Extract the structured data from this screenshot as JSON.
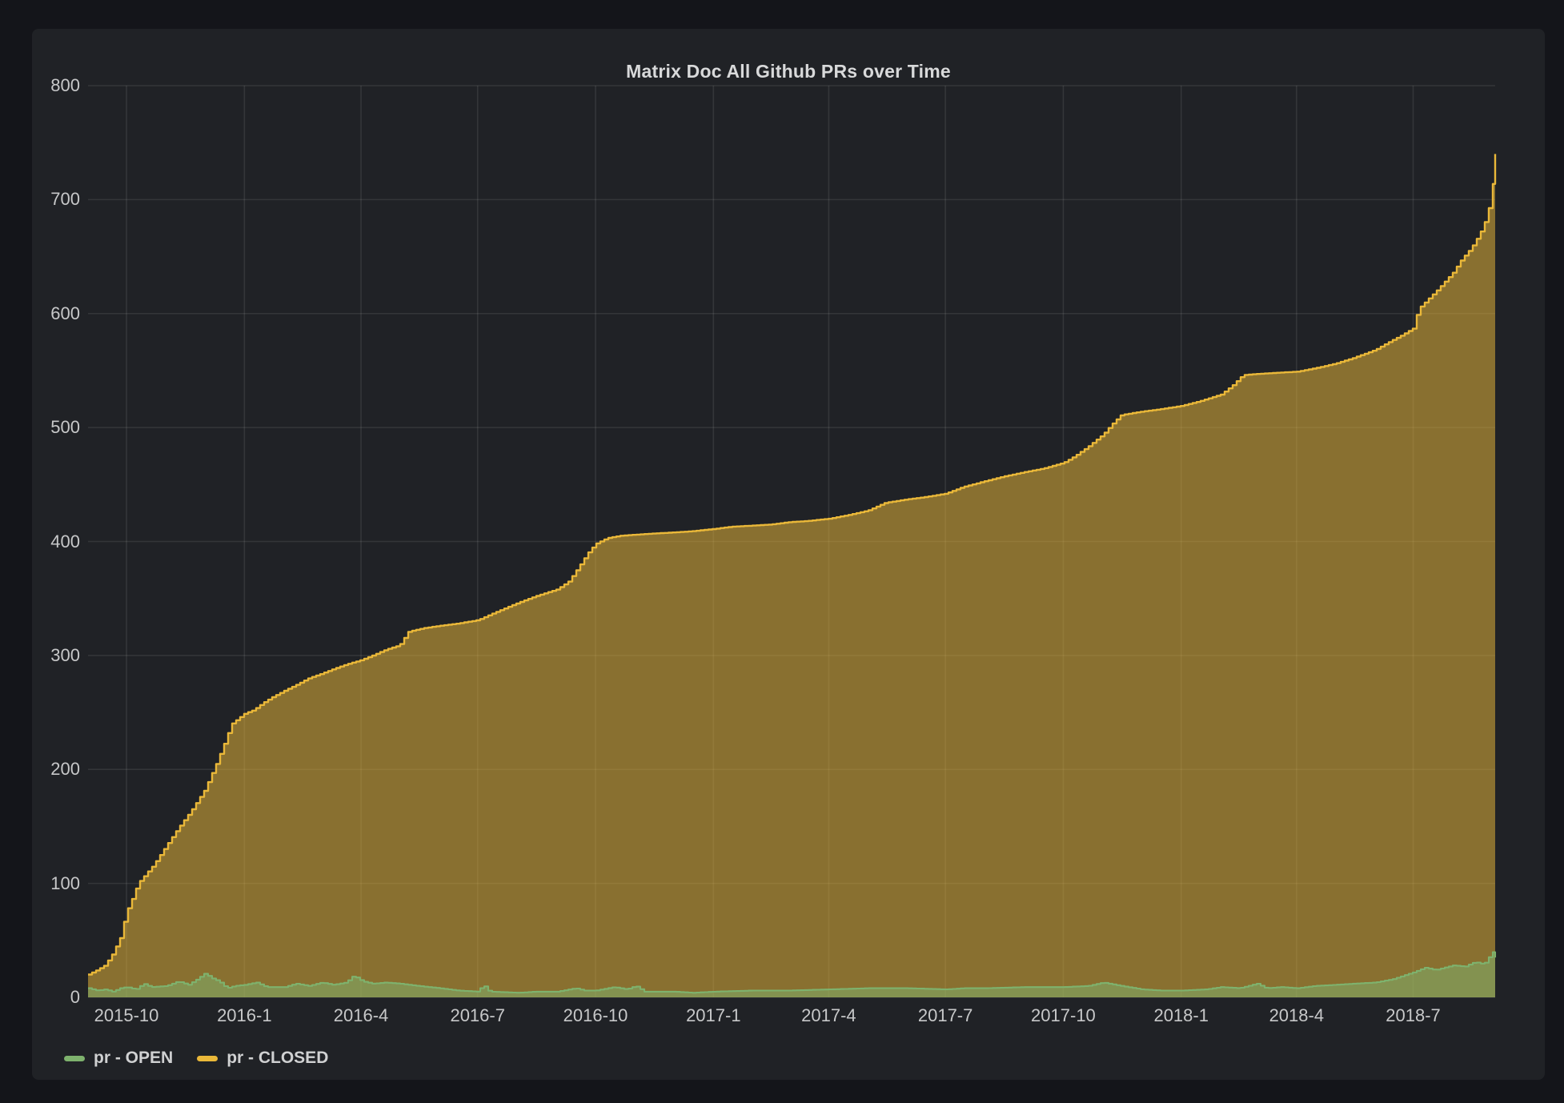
{
  "page": {
    "background": "#14151a"
  },
  "panel": {
    "background": "#202226",
    "title": "Matrix Doc All Github PRs over Time"
  },
  "colors": {
    "grid": "rgba(216,217,218,0.11)",
    "axis_text": "#c7c8c9",
    "title_text": "#d8d9da",
    "open_green": "#7EB26D",
    "closed_yellow": "#EAB839"
  },
  "chart_data": {
    "type": "area",
    "title": "Matrix Doc All Github PRs over Time",
    "stacked": false,
    "grid": true,
    "x_type": "time",
    "x_range": [
      "2015-09-01",
      "2018-09-03"
    ],
    "xlabel": "",
    "ylabel": "",
    "ylim": [
      0,
      800
    ],
    "y_ticks": [
      0,
      100,
      200,
      300,
      400,
      500,
      600,
      700,
      800
    ],
    "x_ticks": [
      {
        "date": "2015-10-01",
        "label": "2015-10"
      },
      {
        "date": "2016-01-01",
        "label": "2016-1"
      },
      {
        "date": "2016-04-01",
        "label": "2016-4"
      },
      {
        "date": "2016-07-01",
        "label": "2016-7"
      },
      {
        "date": "2016-10-01",
        "label": "2016-10"
      },
      {
        "date": "2017-01-01",
        "label": "2017-1"
      },
      {
        "date": "2017-04-01",
        "label": "2017-4"
      },
      {
        "date": "2017-07-01",
        "label": "2017-7"
      },
      {
        "date": "2017-10-01",
        "label": "2017-10"
      },
      {
        "date": "2018-01-01",
        "label": "2018-1"
      },
      {
        "date": "2018-04-01",
        "label": "2018-4"
      },
      {
        "date": "2018-07-01",
        "label": "2018-7"
      }
    ],
    "legend": {
      "position": "bottom-left",
      "items": [
        {
          "label": "pr - OPEN",
          "color": "#7EB26D"
        },
        {
          "label": "pr - CLOSED",
          "color": "#EAB839"
        }
      ]
    },
    "series": [
      {
        "name": "pr - CLOSED",
        "color": "#EAB839",
        "fill_opacity": 0.52,
        "line_width": 2.4,
        "points": [
          [
            "2015-09-01",
            20
          ],
          [
            "2015-09-08",
            24
          ],
          [
            "2015-09-14",
            28
          ],
          [
            "2015-09-20",
            38
          ],
          [
            "2015-09-26",
            52
          ],
          [
            "2015-10-01",
            75
          ],
          [
            "2015-10-06",
            88
          ],
          [
            "2015-10-10",
            100
          ],
          [
            "2015-10-16",
            108
          ],
          [
            "2015-10-22",
            116
          ],
          [
            "2015-11-01",
            133
          ],
          [
            "2015-11-10",
            148
          ],
          [
            "2015-11-20",
            163
          ],
          [
            "2015-12-01",
            182
          ],
          [
            "2015-12-10",
            205
          ],
          [
            "2015-12-16",
            222
          ],
          [
            "2015-12-22",
            240
          ],
          [
            "2016-01-01",
            249
          ],
          [
            "2016-01-08",
            252
          ],
          [
            "2016-01-15",
            258
          ],
          [
            "2016-01-22",
            263
          ],
          [
            "2016-02-01",
            269
          ],
          [
            "2016-02-10",
            274
          ],
          [
            "2016-02-20",
            280
          ],
          [
            "2016-03-01",
            284
          ],
          [
            "2016-03-10",
            288
          ],
          [
            "2016-03-20",
            292
          ],
          [
            "2016-04-01",
            296
          ],
          [
            "2016-04-10",
            300
          ],
          [
            "2016-04-20",
            305
          ],
          [
            "2016-05-01",
            309
          ],
          [
            "2016-05-08",
            321
          ],
          [
            "2016-05-20",
            324
          ],
          [
            "2016-06-01",
            326
          ],
          [
            "2016-06-15",
            328
          ],
          [
            "2016-07-01",
            331
          ],
          [
            "2016-07-15",
            338
          ],
          [
            "2016-08-01",
            346
          ],
          [
            "2016-08-15",
            352
          ],
          [
            "2016-09-01",
            358
          ],
          [
            "2016-09-10",
            365
          ],
          [
            "2016-09-18",
            378
          ],
          [
            "2016-09-25",
            390
          ],
          [
            "2016-10-01",
            398
          ],
          [
            "2016-10-10",
            403
          ],
          [
            "2016-10-20",
            405
          ],
          [
            "2016-11-01",
            406
          ],
          [
            "2016-11-15",
            407
          ],
          [
            "2016-12-01",
            408
          ],
          [
            "2016-12-15",
            409
          ],
          [
            "2017-01-01",
            411
          ],
          [
            "2017-01-15",
            413
          ],
          [
            "2017-02-01",
            414
          ],
          [
            "2017-02-15",
            415
          ],
          [
            "2017-03-01",
            417
          ],
          [
            "2017-03-15",
            418
          ],
          [
            "2017-04-01",
            420
          ],
          [
            "2017-04-15",
            423
          ],
          [
            "2017-05-01",
            427
          ],
          [
            "2017-05-15",
            434
          ],
          [
            "2017-06-01",
            437
          ],
          [
            "2017-06-15",
            439
          ],
          [
            "2017-07-01",
            442
          ],
          [
            "2017-07-15",
            448
          ],
          [
            "2017-08-01",
            453
          ],
          [
            "2017-08-15",
            457
          ],
          [
            "2017-09-01",
            461
          ],
          [
            "2017-09-15",
            464
          ],
          [
            "2017-10-01",
            469
          ],
          [
            "2017-10-10",
            475
          ],
          [
            "2017-10-20",
            483
          ],
          [
            "2017-11-01",
            494
          ],
          [
            "2017-11-08",
            503
          ],
          [
            "2017-11-15",
            511
          ],
          [
            "2017-12-01",
            514
          ],
          [
            "2017-12-15",
            516
          ],
          [
            "2018-01-01",
            519
          ],
          [
            "2018-01-15",
            523
          ],
          [
            "2018-02-01",
            529
          ],
          [
            "2018-02-10",
            537
          ],
          [
            "2018-02-18",
            546
          ],
          [
            "2018-03-01",
            547
          ],
          [
            "2018-03-15",
            548
          ],
          [
            "2018-04-01",
            549
          ],
          [
            "2018-04-15",
            552
          ],
          [
            "2018-05-01",
            556
          ],
          [
            "2018-05-15",
            561
          ],
          [
            "2018-06-01",
            568
          ],
          [
            "2018-06-12",
            575
          ],
          [
            "2018-06-22",
            581
          ],
          [
            "2018-07-01",
            587
          ],
          [
            "2018-07-05",
            604
          ],
          [
            "2018-07-12",
            612
          ],
          [
            "2018-07-20",
            621
          ],
          [
            "2018-08-01",
            636
          ],
          [
            "2018-08-08",
            648
          ],
          [
            "2018-08-15",
            657
          ],
          [
            "2018-08-22",
            670
          ],
          [
            "2018-08-28",
            686
          ],
          [
            "2018-09-01",
            712
          ],
          [
            "2018-09-03",
            740
          ]
        ]
      },
      {
        "name": "pr - OPEN",
        "color": "#7EB26D",
        "fill_opacity": 0.52,
        "line_width": 2.1,
        "points": [
          [
            "2015-09-01",
            8
          ],
          [
            "2015-09-08",
            6
          ],
          [
            "2015-09-14",
            7
          ],
          [
            "2015-09-20",
            5
          ],
          [
            "2015-09-26",
            8
          ],
          [
            "2015-10-01",
            9
          ],
          [
            "2015-10-08",
            7
          ],
          [
            "2015-10-14",
            12
          ],
          [
            "2015-10-20",
            9
          ],
          [
            "2015-11-01",
            10
          ],
          [
            "2015-11-10",
            14
          ],
          [
            "2015-11-18",
            11
          ],
          [
            "2015-11-25",
            16
          ],
          [
            "2015-12-01",
            21
          ],
          [
            "2015-12-06",
            17
          ],
          [
            "2015-12-12",
            14
          ],
          [
            "2015-12-18",
            8
          ],
          [
            "2015-12-24",
            10
          ],
          [
            "2016-01-01",
            11
          ],
          [
            "2016-01-10",
            13
          ],
          [
            "2016-01-18",
            9
          ],
          [
            "2016-02-01",
            9
          ],
          [
            "2016-02-10",
            12
          ],
          [
            "2016-02-20",
            10
          ],
          [
            "2016-03-01",
            13
          ],
          [
            "2016-03-10",
            11
          ],
          [
            "2016-03-20",
            13
          ],
          [
            "2016-03-26",
            19
          ],
          [
            "2016-04-02",
            14
          ],
          [
            "2016-04-10",
            12
          ],
          [
            "2016-04-20",
            13
          ],
          [
            "2016-05-01",
            12
          ],
          [
            "2016-05-15",
            10
          ],
          [
            "2016-06-01",
            8
          ],
          [
            "2016-06-15",
            6
          ],
          [
            "2016-07-01",
            5
          ],
          [
            "2016-07-05",
            11
          ],
          [
            "2016-07-10",
            5
          ],
          [
            "2016-08-01",
            4
          ],
          [
            "2016-08-15",
            5
          ],
          [
            "2016-09-01",
            5
          ],
          [
            "2016-09-15",
            8
          ],
          [
            "2016-09-22",
            6
          ],
          [
            "2016-10-01",
            6
          ],
          [
            "2016-10-15",
            9
          ],
          [
            "2016-10-25",
            7
          ],
          [
            "2016-11-01",
            10
          ],
          [
            "2016-11-08",
            5
          ],
          [
            "2016-12-01",
            5
          ],
          [
            "2016-12-15",
            4
          ],
          [
            "2017-01-01",
            5
          ],
          [
            "2017-02-01",
            6
          ],
          [
            "2017-03-01",
            6
          ],
          [
            "2017-04-01",
            7
          ],
          [
            "2017-05-01",
            8
          ],
          [
            "2017-06-01",
            8
          ],
          [
            "2017-07-01",
            7
          ],
          [
            "2017-07-15",
            8
          ],
          [
            "2017-08-01",
            8
          ],
          [
            "2017-09-01",
            9
          ],
          [
            "2017-10-01",
            9
          ],
          [
            "2017-10-20",
            10
          ],
          [
            "2017-11-01",
            13
          ],
          [
            "2017-11-10",
            11
          ],
          [
            "2017-11-20",
            9
          ],
          [
            "2017-12-01",
            7
          ],
          [
            "2017-12-15",
            6
          ],
          [
            "2018-01-01",
            6
          ],
          [
            "2018-01-20",
            7
          ],
          [
            "2018-02-01",
            9
          ],
          [
            "2018-02-15",
            8
          ],
          [
            "2018-03-01",
            12
          ],
          [
            "2018-03-08",
            8
          ],
          [
            "2018-03-20",
            9
          ],
          [
            "2018-04-01",
            8
          ],
          [
            "2018-04-15",
            10
          ],
          [
            "2018-05-01",
            11
          ],
          [
            "2018-05-15",
            12
          ],
          [
            "2018-06-01",
            13
          ],
          [
            "2018-06-15",
            16
          ],
          [
            "2018-07-01",
            22
          ],
          [
            "2018-07-10",
            26
          ],
          [
            "2018-07-18",
            24
          ],
          [
            "2018-08-01",
            28
          ],
          [
            "2018-08-10",
            27
          ],
          [
            "2018-08-18",
            31
          ],
          [
            "2018-08-25",
            29
          ],
          [
            "2018-09-01",
            40
          ],
          [
            "2018-09-03",
            35
          ]
        ]
      }
    ]
  }
}
